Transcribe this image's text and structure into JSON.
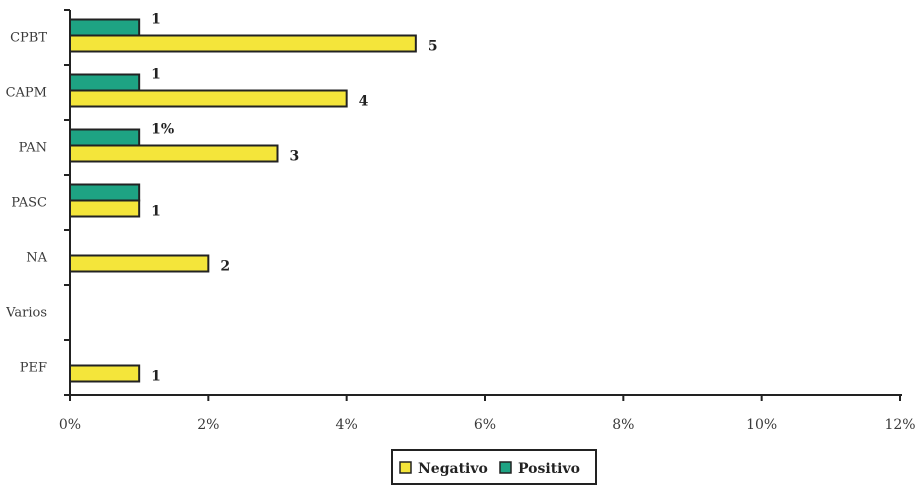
{
  "chart_data": {
    "type": "bar",
    "orientation": "horizontal",
    "categories": [
      "CPBT",
      "CAPM",
      "PAN",
      "PASC",
      "NA",
      "Varios",
      "PEF"
    ],
    "series": [
      {
        "name": "Positivo",
        "color": "#1ea383",
        "values": [
          1,
          1,
          1,
          1,
          0,
          0,
          0
        ],
        "labels": [
          "1",
          "1",
          "1%",
          "",
          "",
          "",
          ""
        ]
      },
      {
        "name": "Negativo",
        "color": "#f4e53a",
        "values": [
          5,
          4,
          3,
          1,
          2,
          0,
          1
        ],
        "labels": [
          "5",
          "4",
          "3",
          "1",
          "2",
          "",
          "1"
        ]
      }
    ],
    "xlim": [
      0,
      12
    ],
    "xticks": [
      0,
      2,
      4,
      6,
      8,
      10,
      12
    ],
    "xtick_labels": [
      "0%",
      "2%",
      "4%",
      "6%",
      "8%",
      "10%",
      "12%"
    ],
    "legend": {
      "position": "bottom-center",
      "items": [
        "Negativo",
        "Positivo"
      ]
    },
    "grid": false
  }
}
